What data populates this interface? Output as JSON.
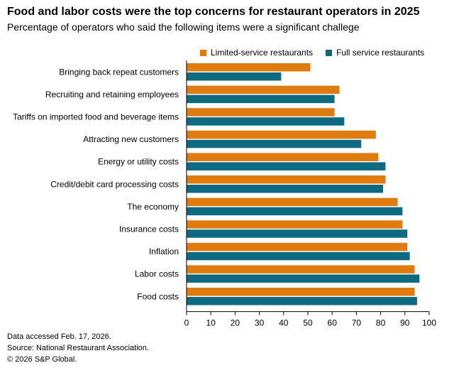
{
  "header": {
    "title": "Food and labor costs were the top concerns for restaurant operators in 2025",
    "subtitle": "Percentage of operators who said the following items were a significant challege"
  },
  "colors": {
    "limited": "#E07B0F",
    "full": "#0D6A80",
    "axis": "#000000",
    "grid": "#d8d8d8"
  },
  "chart_data": {
    "type": "bar",
    "orientation": "horizontal",
    "categories": [
      "Bringing back repeat customers",
      "Recruiting and retaining employees",
      "Tariffs on imported food and beverage items",
      "Attracting new customers",
      "Energy or utility costs",
      "Credit/debit card processing costs",
      "The economy",
      "Insurance costs",
      "Inflation",
      "Labor costs",
      "Food costs"
    ],
    "series": [
      {
        "name": "Limited-service restaurants",
        "values": [
          51,
          63,
          61,
          78,
          79,
          82,
          87,
          89,
          91,
          94,
          94
        ]
      },
      {
        "name": "Full service restaurants",
        "values": [
          39,
          61,
          65,
          72,
          82,
          81,
          89,
          91,
          92,
          96,
          95
        ]
      }
    ],
    "xlim": [
      0,
      100
    ],
    "xticks": [
      0,
      10,
      20,
      30,
      40,
      50,
      60,
      70,
      80,
      90,
      100
    ],
    "legend": "top-right",
    "grid": false
  },
  "footer": {
    "accessed": "Data accessed Feb. 17, 2026.",
    "source": "Source: National Restaurant Association.",
    "copyright": "© 2026 S&P Global."
  }
}
